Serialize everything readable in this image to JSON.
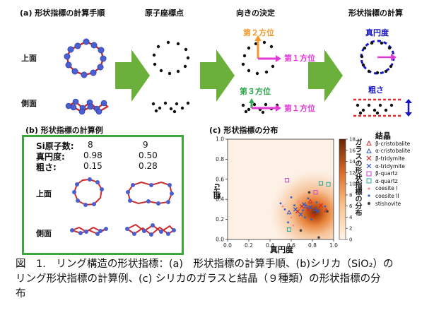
{
  "panel_a": {
    "title": "(a) 形状指標の計算手順",
    "row_top": "上面",
    "row_side": "側面",
    "col2_title": "原子座標点",
    "col3_title": "向きの決定",
    "col4_title": "形状指標の計算",
    "dir2": "第２方位",
    "dir1": "第１方位",
    "dir3": "第３方位",
    "roundness": "真円度",
    "roughness": "粗さ"
  },
  "panel_b": {
    "title": "(b) 形状指標の計算例",
    "row1_label": "Si原子数:",
    "row1_v1": "8",
    "row1_v2": "9",
    "row2_label": "真円度:",
    "row2_v1": "0.98",
    "row2_v2": "0.50",
    "row3_label": "粗さ:",
    "row3_v1": "0.15",
    "row3_v2": "0.28",
    "top_label": "上面",
    "side_label": "側面"
  },
  "panel_c": {
    "title": "(c) 形状指標の分布",
    "xlabel": "真円度",
    "ylabel": "粗さ",
    "colorbar_label": "ガラスの形状指標の分布",
    "legend_title": "結晶",
    "legend": [
      {
        "label": "β-cristobalite",
        "marker": "triangle",
        "color": "#d62728"
      },
      {
        "label": "α-cristobalite",
        "marker": "triangle",
        "color": "#3355cc"
      },
      {
        "label": "β-tridymite",
        "marker": "x",
        "color": "#d62728"
      },
      {
        "label": "α-tridymite",
        "marker": "x",
        "color": "#3355cc"
      },
      {
        "label": "β-quartz",
        "marker": "square",
        "color": "#cc44cc"
      },
      {
        "label": "α-quartz",
        "marker": "square",
        "color": "#22aa99"
      },
      {
        "label": "coesite I",
        "marker": "dot",
        "color": "#ff8888"
      },
      {
        "label": "coesite II",
        "marker": "dot",
        "color": "#3366cc"
      },
      {
        "label": "stishovite",
        "marker": "star",
        "color": "#444444"
      }
    ]
  },
  "chart_data": {
    "type": "scatter",
    "title": "(c) 形状指標の分布",
    "xlabel": "真円度",
    "ylabel": "粗さ",
    "xlim": [
      0.0,
      1.0
    ],
    "ylim": [
      0.0,
      1.0
    ],
    "xticks": [
      "0.0",
      "0.2",
      "0.4",
      "0.6",
      "0.8",
      "1.0"
    ],
    "yticks": [
      "0.0",
      "0.2",
      "0.4",
      "0.6",
      "0.8",
      "1.0"
    ],
    "colorbar": {
      "label": "ガラスの形状指標の分布",
      "ticks": [
        "0",
        "2",
        "4",
        "6",
        "8",
        "10",
        "12",
        "14",
        "16",
        "18"
      ],
      "range": [
        0,
        18
      ]
    },
    "density_peak": {
      "x": 0.82,
      "y": 0.27
    },
    "series": [
      {
        "name": "β-cristobalite",
        "points": [
          [
            0.78,
            0.38
          ],
          [
            0.93,
            0.29
          ]
        ]
      },
      {
        "name": "α-cristobalite",
        "points": [
          [
            0.74,
            0.33
          ],
          [
            0.58,
            0.27
          ],
          [
            0.83,
            0.3
          ]
        ]
      },
      {
        "name": "β-tridymite",
        "points": [
          [
            0.7,
            0.33
          ],
          [
            0.76,
            0.3
          ],
          [
            0.88,
            0.34
          ],
          [
            0.66,
            0.28
          ],
          [
            0.8,
            0.24
          ]
        ]
      },
      {
        "name": "α-tridymite",
        "points": [
          [
            0.72,
            0.35
          ],
          [
            0.78,
            0.32
          ],
          [
            0.64,
            0.3
          ],
          [
            0.85,
            0.28
          ],
          [
            0.69,
            0.25
          ]
        ]
      },
      {
        "name": "β-quartz",
        "points": [
          [
            0.56,
            0.59
          ],
          [
            0.83,
            0.47
          ]
        ]
      },
      {
        "name": "α-quartz",
        "points": [
          [
            0.88,
            0.56
          ],
          [
            0.58,
            0.1
          ],
          [
            0.95,
            0.55
          ]
        ]
      },
      {
        "name": "coesite I",
        "points": [
          [
            0.52,
            0.33
          ],
          [
            0.6,
            0.22
          ],
          [
            0.79,
            0.43
          ],
          [
            0.62,
            0.14
          ],
          [
            0.67,
            0.38
          ],
          [
            0.91,
            0.4
          ]
        ]
      },
      {
        "name": "coesite II",
        "points": [
          [
            0.54,
            0.3
          ],
          [
            0.63,
            0.34
          ],
          [
            0.71,
            0.29
          ],
          [
            0.76,
            0.41
          ],
          [
            0.84,
            0.37
          ],
          [
            0.6,
            0.42
          ],
          [
            0.5,
            0.36
          ],
          [
            0.73,
            0.22
          ],
          [
            0.92,
            0.33
          ],
          [
            0.57,
            0.17
          ],
          [
            0.79,
            0.2
          ]
        ]
      },
      {
        "name": "stishovite",
        "points": [
          [
            0.86,
            0.02
          ],
          [
            0.94,
            0.28
          ],
          [
            0.69,
            0.09
          ],
          [
            0.77,
            0.47
          ]
        ]
      }
    ]
  },
  "caption": {
    "line1": "図　1.　リング構造の形状指標：(a)　形状指標の計算手順、(b)シリカ（SiO₂）の",
    "line2": "リング形状指標の計算例、(c) シリカのガラスと結晶（９種類）の形状指標の分",
    "line3": "布"
  }
}
